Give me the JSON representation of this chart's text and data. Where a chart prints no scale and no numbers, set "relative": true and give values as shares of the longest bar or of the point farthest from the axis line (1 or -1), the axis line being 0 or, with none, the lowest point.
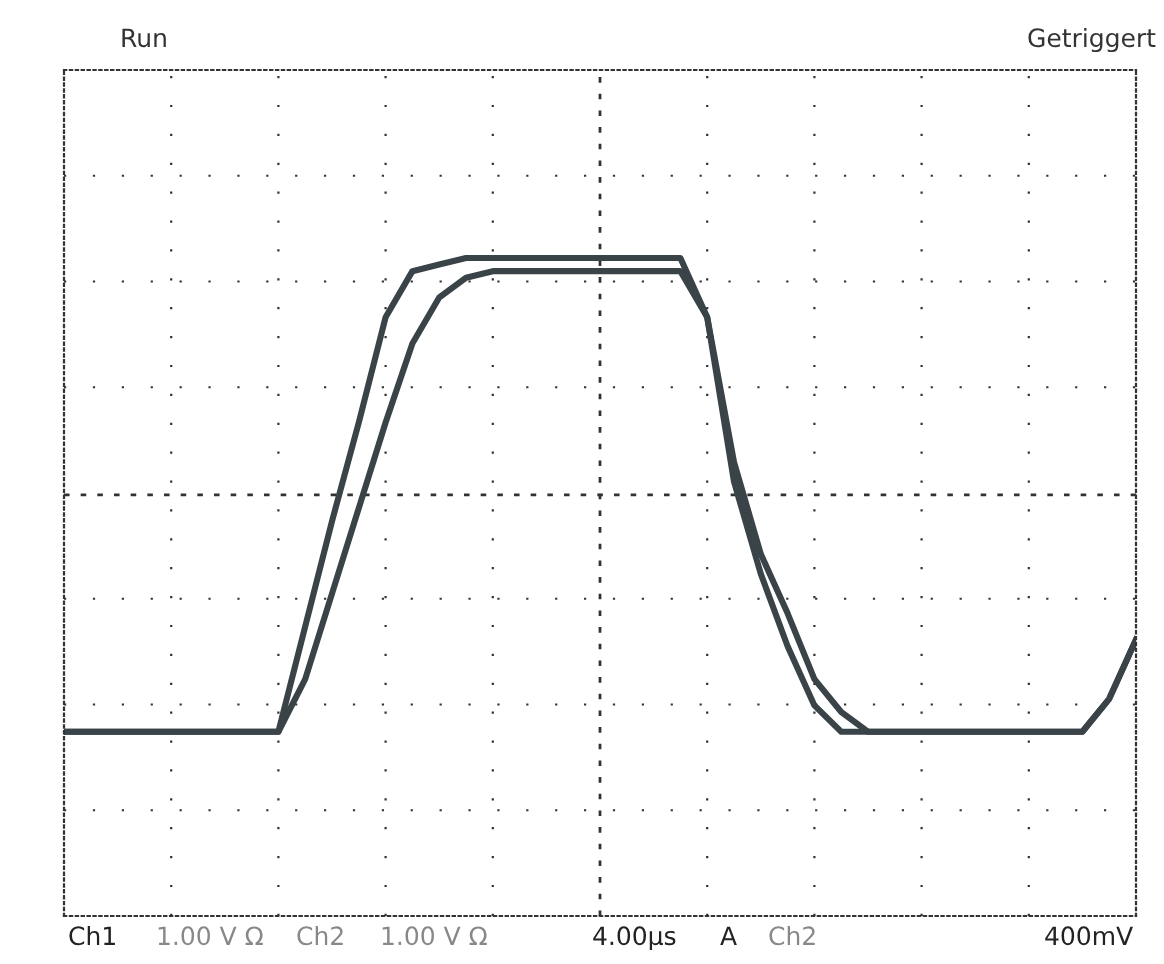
{
  "chart_data": {
    "type": "line",
    "relative": true,
    "grid": true,
    "legend": false,
    "ref_lines": [
      {
        "axis": "y",
        "value": 0.64,
        "line_style": "dashed",
        "color": "#333333"
      }
    ],
    "marker": "none",
    "line_style": "solid",
    "categories": [
      null,
      null,
      null,
      null,
      null,
      null,
      null,
      null,
      null,
      null,
      null,
      null,
      null,
      null,
      null,
      null,
      null,
      null,
      null,
      null,
      null,
      null,
      null,
      null,
      null,
      null,
      null,
      null,
      null,
      null,
      null,
      null,
      null,
      null,
      null,
      null,
      null,
      null,
      null,
      null,
      null
    ],
    "series": [
      {
        "color": "#3a4448",
        "values": [
          0.28,
          0.28,
          0.28,
          0.28,
          0.28,
          0.28,
          0.28,
          0.28,
          0.28,
          0.44,
          0.6,
          0.75,
          0.91,
          0.98,
          0.99,
          1,
          1,
          1,
          1,
          1,
          1,
          1,
          1,
          1,
          0.91,
          0.66,
          0.52,
          0.41,
          0.32,
          0.28,
          0.28,
          0.28,
          0.28,
          0.28,
          0.28,
          0.28,
          0.28,
          0.28,
          0.28,
          0.33,
          0.42
        ]
      },
      {
        "color": "#3a4448",
        "values": [
          0.28,
          0.28,
          0.28,
          0.28,
          0.28,
          0.28,
          0.28,
          0.28,
          0.28,
          0.36,
          0.49,
          0.62,
          0.75,
          0.87,
          0.94,
          0.97,
          0.98,
          0.98,
          0.98,
          0.98,
          0.98,
          0.98,
          0.98,
          0.98,
          0.91,
          0.69,
          0.55,
          0.46,
          0.36,
          0.31,
          0.28,
          0.28,
          0.28,
          0.28,
          0.28,
          0.28,
          0.28,
          0.28,
          0.28,
          0.33,
          0.42
        ]
      }
    ],
    "annotations": [
      "Run",
      "Getriggert",
      "Ch1",
      "1.00 V Ω",
      "Ch2",
      "1.00 V Ω",
      "4.00µs",
      "A",
      "Ch2",
      "400mV"
    ]
  }
}
